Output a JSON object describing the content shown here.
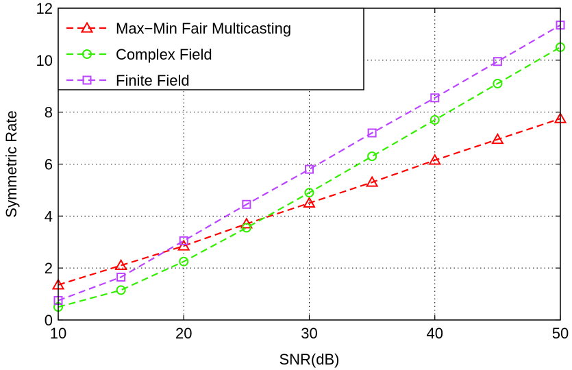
{
  "chart_data": {
    "type": "line",
    "title": "",
    "xlabel": "SNR(dB)",
    "ylabel": "Symmetric Rate",
    "xlim": [
      10,
      50
    ],
    "ylim": [
      0,
      12
    ],
    "xticks": [
      10,
      20,
      30,
      40,
      50
    ],
    "yticks": [
      0,
      2,
      4,
      6,
      8,
      10,
      12
    ],
    "grid": true,
    "legend_position": "top-left",
    "x": [
      10,
      15,
      20,
      25,
      30,
      35,
      40,
      45,
      50
    ],
    "series": [
      {
        "name": "Max−Min Fair Multicasting",
        "color": "#ff0000",
        "marker": "triangle",
        "values": [
          1.35,
          2.1,
          2.85,
          3.7,
          4.5,
          5.3,
          6.15,
          6.95,
          7.75
        ]
      },
      {
        "name": "Complex Field",
        "color": "#33ee00",
        "marker": "circle",
        "values": [
          0.5,
          1.15,
          2.25,
          3.55,
          4.9,
          6.3,
          7.7,
          9.1,
          10.5
        ]
      },
      {
        "name": "Finite Field",
        "color": "#bb44ff",
        "marker": "square",
        "values": [
          0.75,
          1.65,
          3.05,
          4.45,
          5.8,
          7.2,
          8.55,
          9.95,
          11.35
        ]
      }
    ]
  }
}
